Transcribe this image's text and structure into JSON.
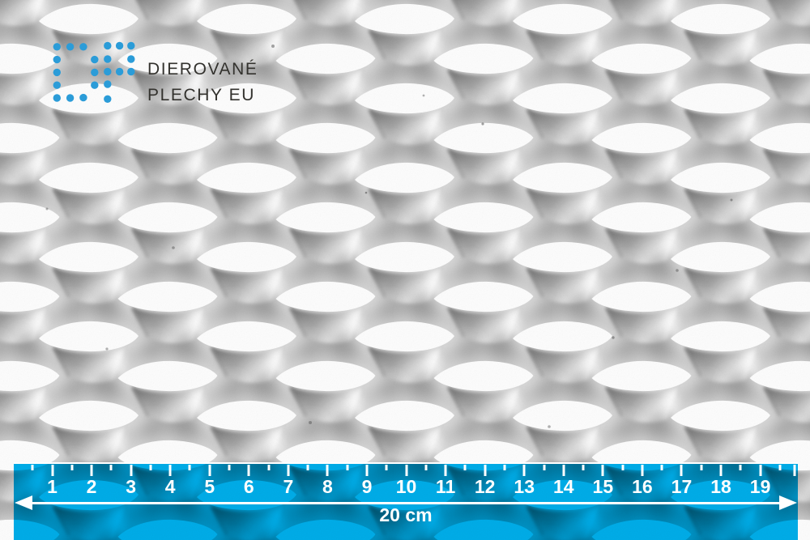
{
  "logo": {
    "mark": "dp-dots-monogram",
    "line1": "DIEROVANÉ",
    "line2": "PLECHY EU",
    "brand_color": "#2B9CD8",
    "text_color": "#33322E"
  },
  "texture": {
    "name": "perforated-embossed-metal-sheet"
  },
  "ruler": {
    "band_color": "#00AEEA",
    "tick_color": "#FFFFFF",
    "unit_labels": [
      "1",
      "2",
      "3",
      "4",
      "5",
      "6",
      "7",
      "8",
      "9",
      "10",
      "11",
      "12",
      "13",
      "14",
      "15",
      "16",
      "17",
      "18",
      "19"
    ],
    "half_tick_count": 20,
    "extra_end_tick": true,
    "span_label": "20 cm"
  }
}
